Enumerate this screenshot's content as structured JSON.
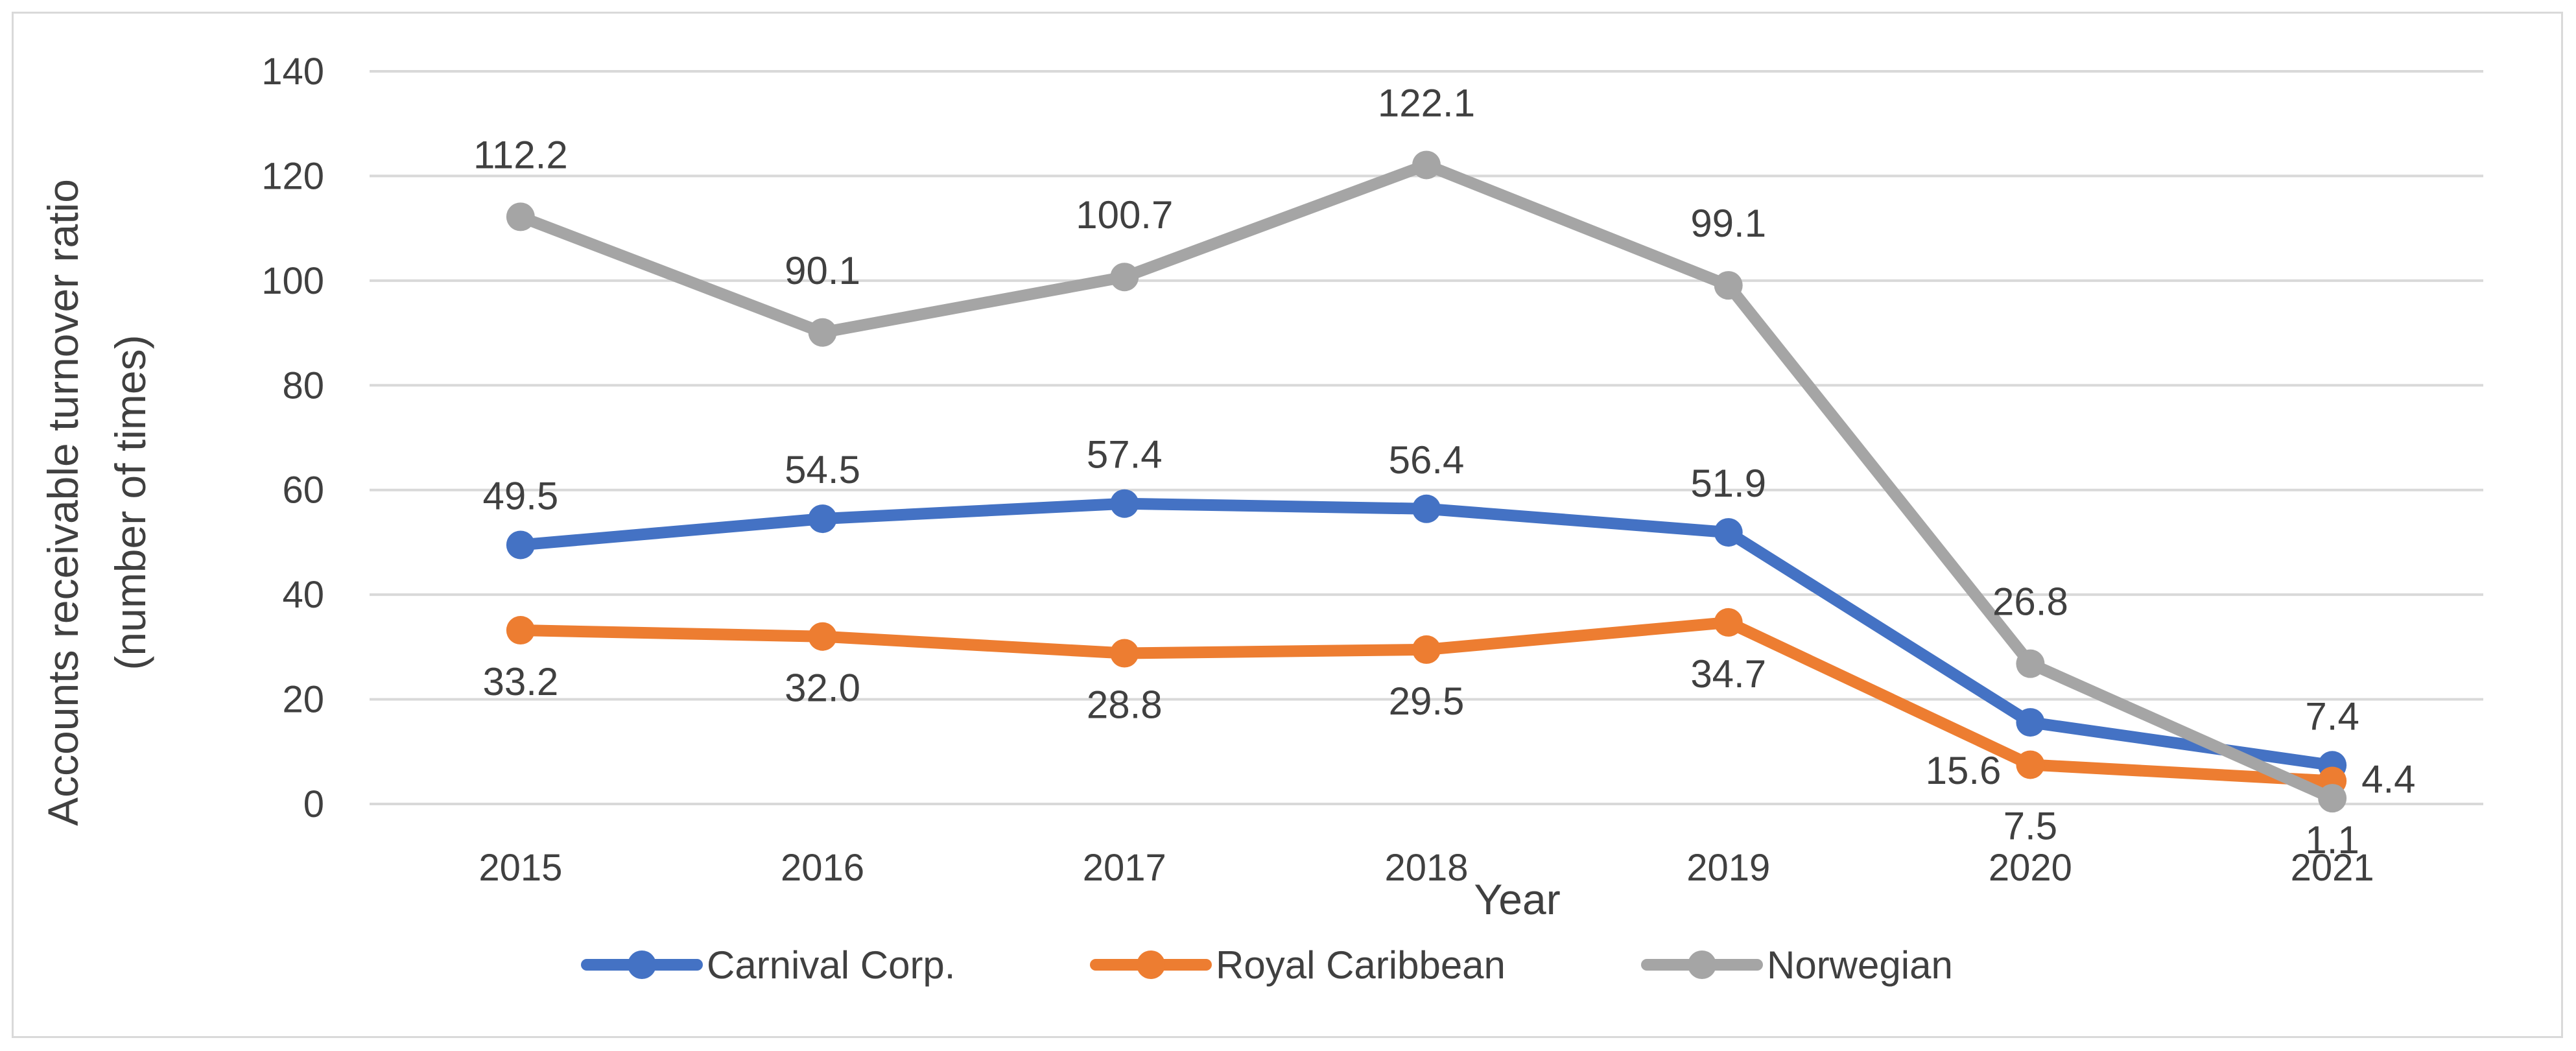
{
  "chart_data": {
    "type": "line",
    "title": "",
    "xlabel": "Year",
    "ylabel_line1": "Accounts receivable turnover ratio",
    "ylabel_line2": "(number of times)",
    "categories": [
      "2015",
      "2016",
      "2017",
      "2018",
      "2019",
      "2020",
      "2021"
    ],
    "ylim": [
      0,
      140
    ],
    "yticks": [
      0,
      20,
      40,
      60,
      80,
      100,
      120,
      140
    ],
    "grid": true,
    "legend_position": "bottom",
    "series": [
      {
        "name": "Carnival Corp.",
        "color": "#4472c4",
        "values": [
          49.5,
          54.5,
          57.4,
          56.4,
          51.9,
          15.6,
          7.4
        ],
        "labels": [
          "49.5",
          "54.5",
          "57.4",
          "56.4",
          "51.9",
          "15.6",
          "7.4"
        ]
      },
      {
        "name": "Royal Caribbean",
        "color": "#ed7d31",
        "values": [
          33.2,
          32.0,
          28.8,
          29.5,
          34.7,
          7.5,
          4.4
        ],
        "labels": [
          "33.2",
          "32.0",
          "28.8",
          "29.5",
          "34.7",
          "7.5",
          "4.4"
        ]
      },
      {
        "name": "Norwegian",
        "color": "#a5a5a5",
        "values": [
          112.2,
          90.1,
          100.7,
          122.1,
          99.1,
          26.8,
          1.1
        ],
        "labels": [
          "112.2",
          "90.1",
          "100.7",
          "122.1",
          "99.1",
          "26.8",
          "1.1"
        ]
      }
    ]
  }
}
